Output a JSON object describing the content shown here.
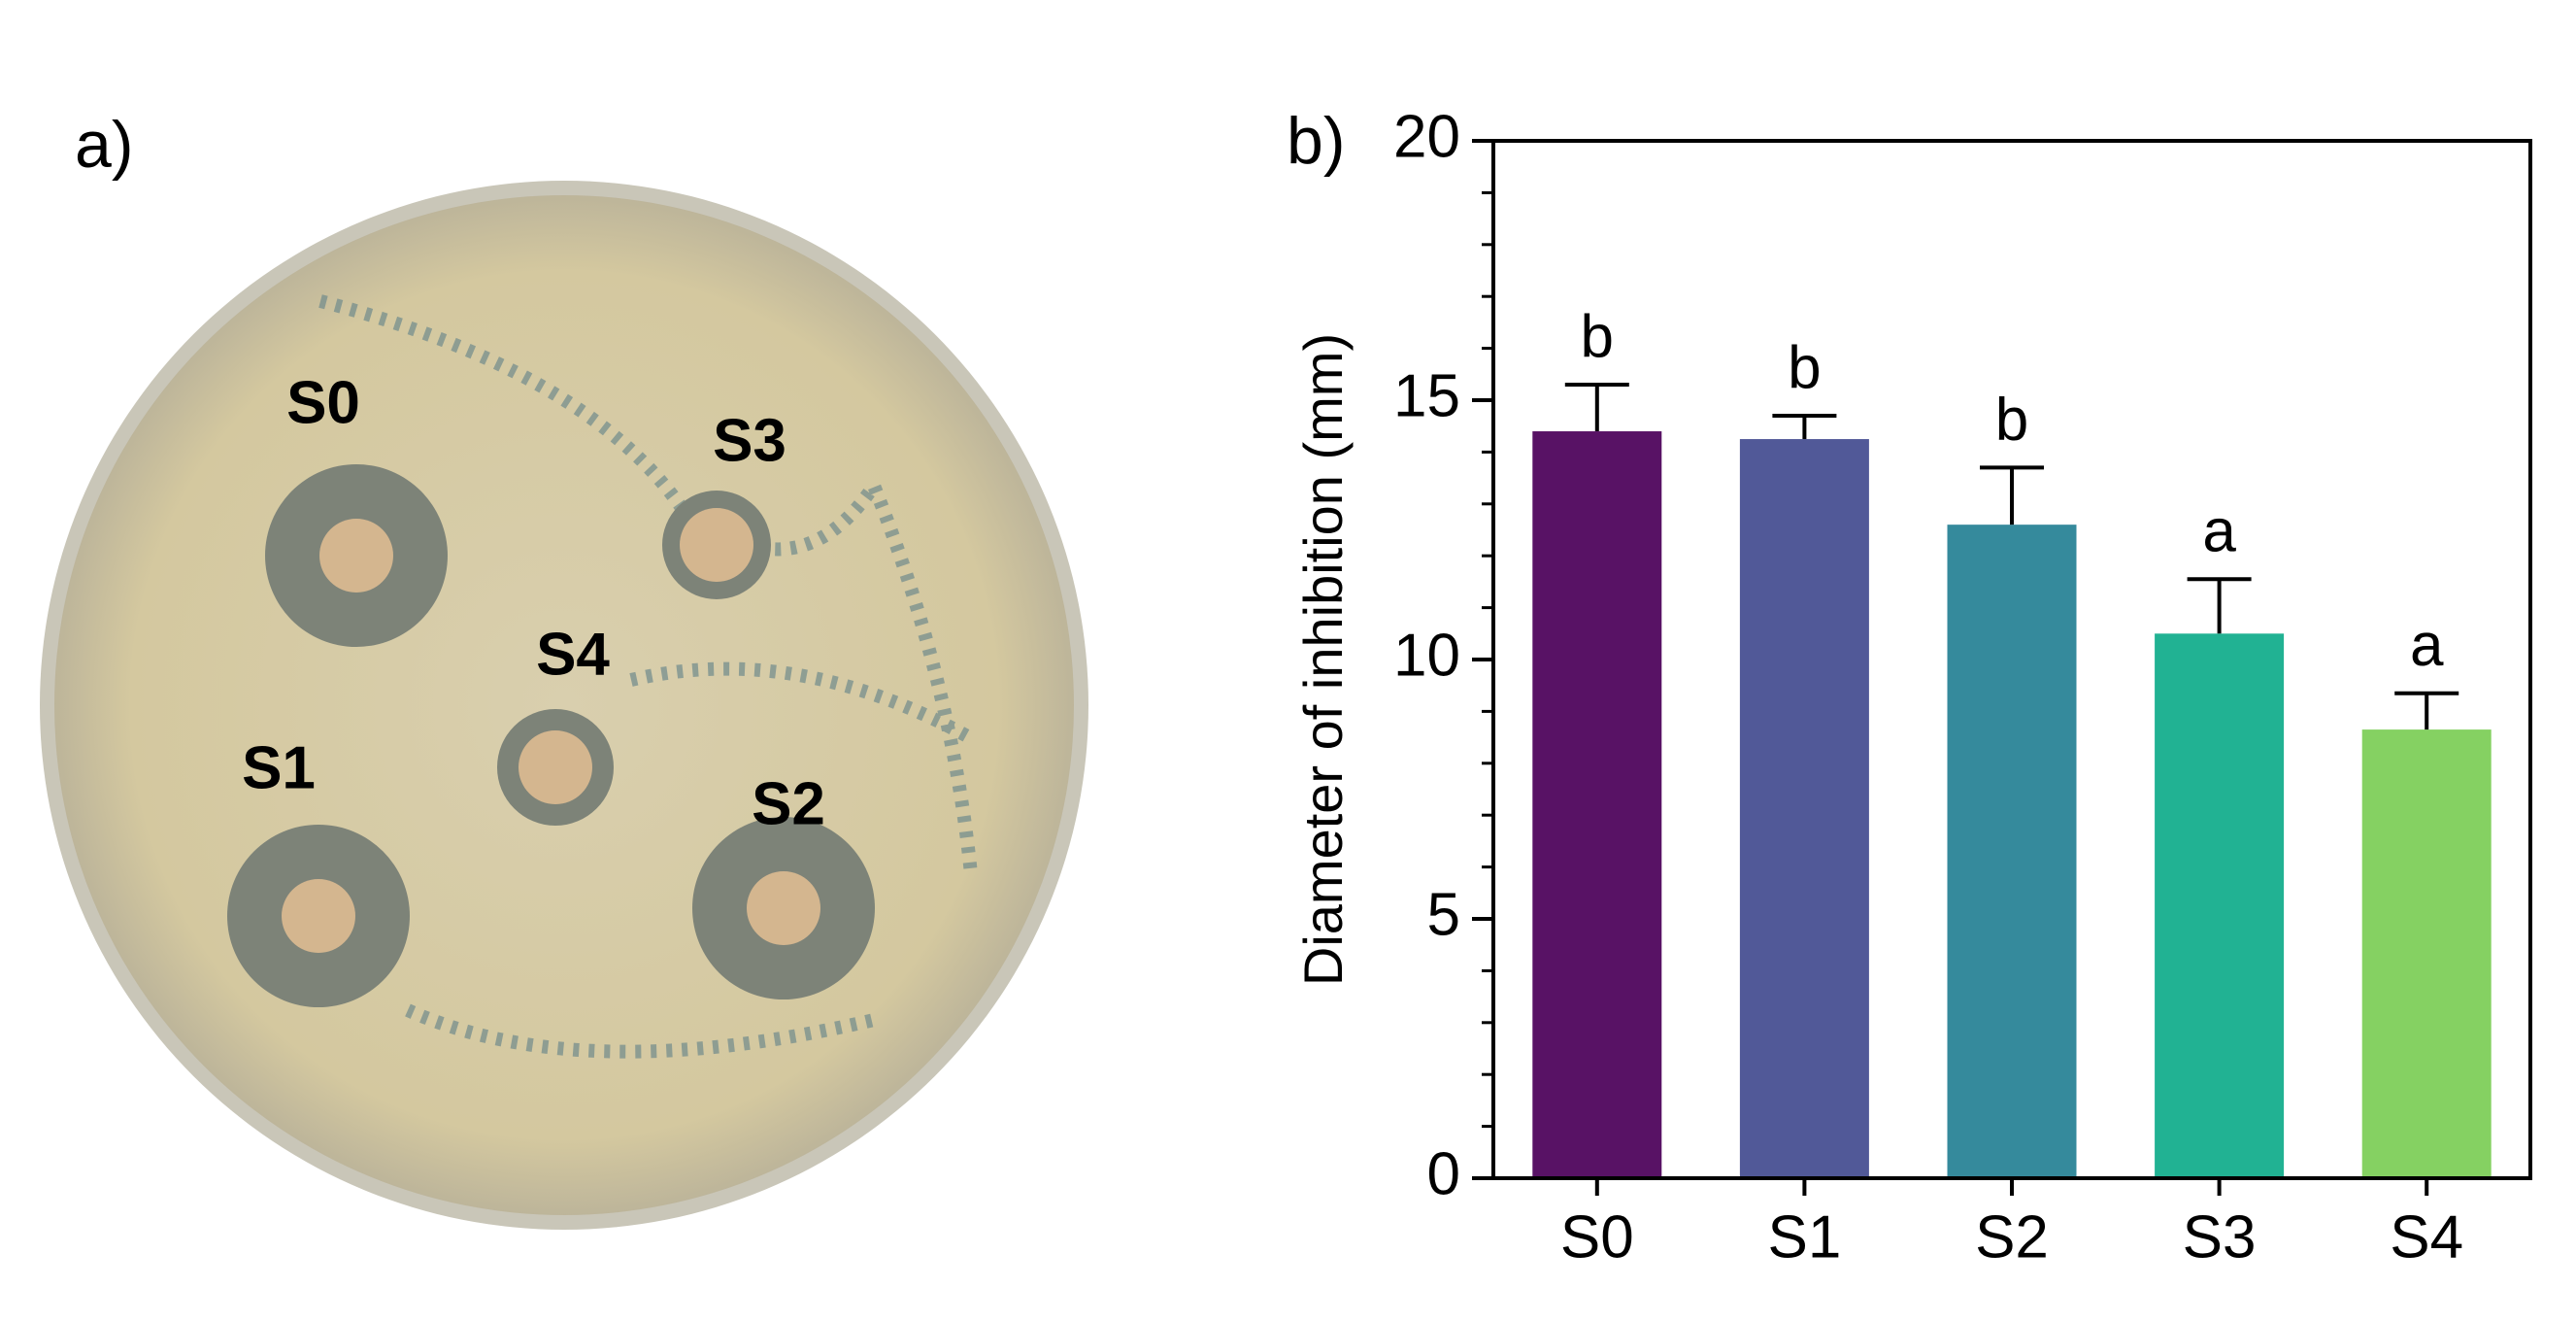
{
  "panel_a": {
    "label": "a)",
    "wells": [
      "S0",
      "S3",
      "S4",
      "S1",
      "S2"
    ]
  },
  "chart_data": {
    "type": "bar",
    "panel_label": "b)",
    "y_label": "Diameter of inhibition (mm)",
    "categories": [
      "S0",
      "S1",
      "S2",
      "S3",
      "S4"
    ],
    "values": [
      14.4,
      14.25,
      12.6,
      10.5,
      8.65
    ],
    "errors": [
      0.9,
      0.45,
      1.1,
      1.05,
      0.7
    ],
    "significance": [
      "b",
      "b",
      "b",
      "a",
      "a"
    ],
    "colors": [
      "#581265",
      "#515998",
      "#358a9c",
      "#21b293",
      "#85d162"
    ],
    "ylim": [
      0,
      20
    ],
    "yticks": [
      0,
      5,
      10,
      15,
      20
    ],
    "minor_yticks": [
      1,
      2,
      3,
      4,
      6,
      7,
      8,
      9,
      11,
      12,
      13,
      14,
      16,
      17,
      18,
      19
    ]
  }
}
